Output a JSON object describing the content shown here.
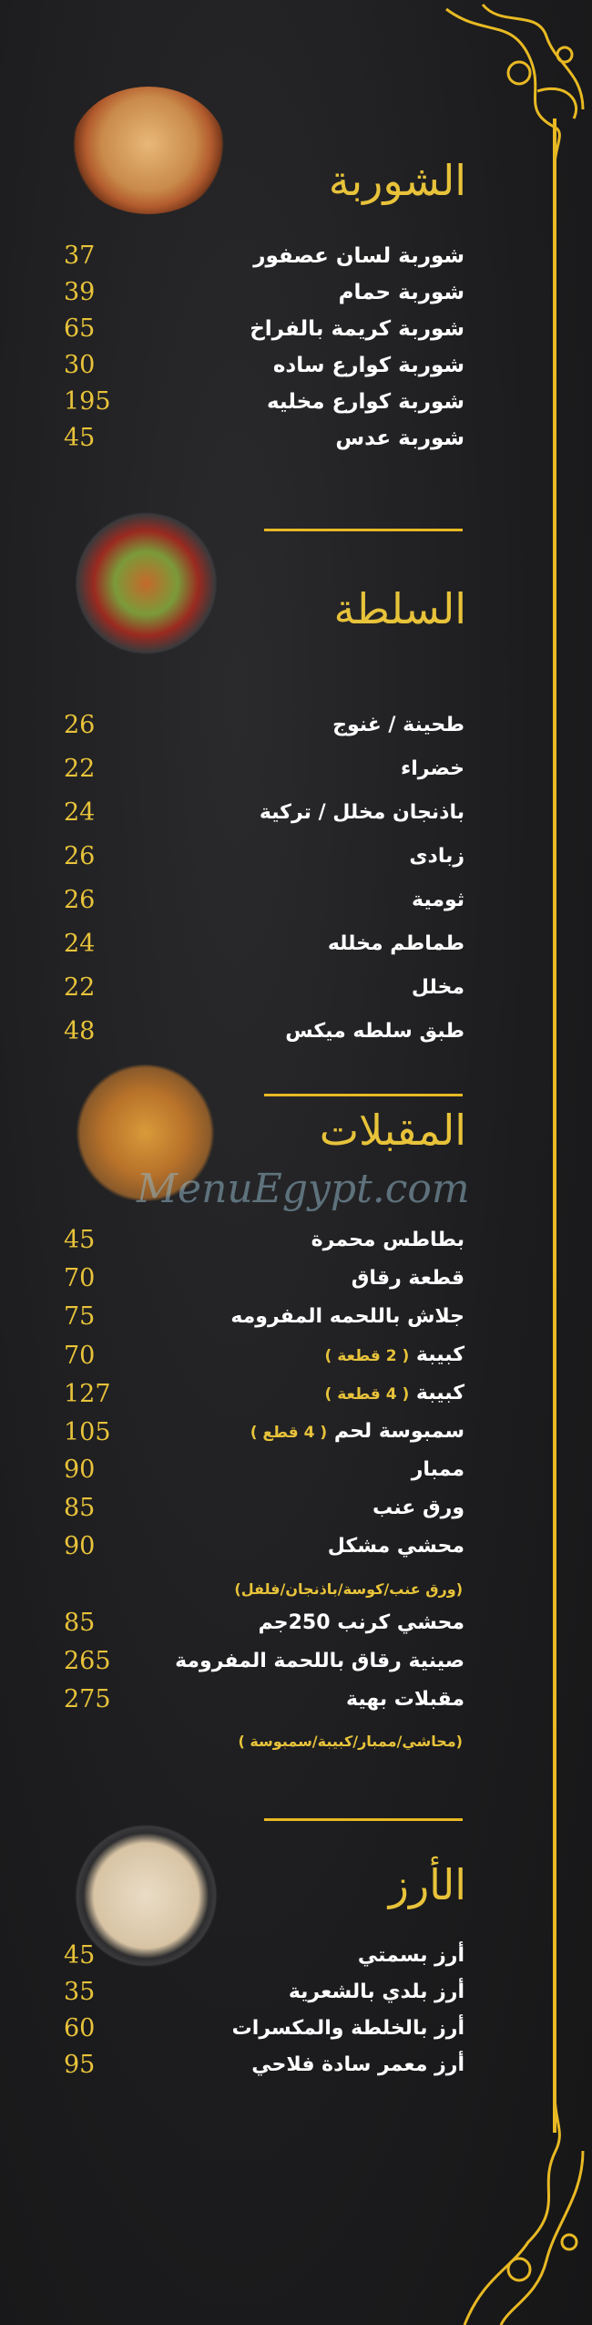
{
  "colors": {
    "background": "#1d1d1f",
    "accent": "#e8b923",
    "text": "#ffffff"
  },
  "watermark": "MenuEgypt.com",
  "sections": [
    {
      "title": "الشوربة",
      "image": "soup-bowl",
      "items": [
        {
          "name": "شوربة لسان عصفور",
          "price": "37"
        },
        {
          "name": "شوربة حمام",
          "price": "39"
        },
        {
          "name": "شوربة كريمة بالفراخ",
          "price": "65"
        },
        {
          "name": "شوربة كوارع ساده",
          "price": "30"
        },
        {
          "name": "شوربة كوارع مخليه",
          "price": "195"
        },
        {
          "name": "شوربة عدس",
          "price": "45"
        }
      ]
    },
    {
      "title": "السلطة",
      "image": "salad-plate",
      "items": [
        {
          "name": "طحينة / غنوج",
          "price": "26"
        },
        {
          "name": "خضراء",
          "price": "22"
        },
        {
          "name": "باذنجان مخلل / تركية",
          "price": "24"
        },
        {
          "name": "زبادى",
          "price": "26"
        },
        {
          "name": "ثومية",
          "price": "26"
        },
        {
          "name": "طماطم مخلله",
          "price": "24"
        },
        {
          "name": "مخلل",
          "price": "22"
        },
        {
          "name": "طبق سلطه ميكس",
          "price": "48"
        }
      ]
    },
    {
      "title": "المقبلات",
      "image": "appetizers-platter",
      "items": [
        {
          "name": "بطاطس محمرة",
          "price": "45"
        },
        {
          "name": "قطعة رقاق",
          "price": "70"
        },
        {
          "name": "جلاش باللحمه المفرومه",
          "price": "75"
        },
        {
          "name": "كبيبة",
          "sub": "( 2 قطعة )",
          "price": "70"
        },
        {
          "name": "كبيبة",
          "sub": "( 4 قطعة )",
          "price": "127"
        },
        {
          "name": "سمبوسة لحم",
          "sub": "( 4 قطع )",
          "price": "105"
        },
        {
          "name": "ممبار",
          "price": "90"
        },
        {
          "name": "ورق عنب",
          "price": "85"
        },
        {
          "name": "محشي مشكل",
          "price": "90"
        },
        {
          "name": "محشي كرنب 250جم",
          "price": "85"
        },
        {
          "name": "صينية رقاق باللحمة المفرومة",
          "price": "265"
        },
        {
          "name": "مقبلات بهية",
          "price": "275"
        }
      ],
      "notes": [
        "(ورق عنب/كوسة/باذنجان/فلفل)",
        "(محاشي/ممبار/كبيبة/سمبوسة )"
      ]
    },
    {
      "title": "الأرز",
      "image": "rice-bowl",
      "items": [
        {
          "name": "أرز بسمتي",
          "price": "45"
        },
        {
          "name": "أرز  بلدي بالشعرية",
          "price": "35"
        },
        {
          "name": "أرز بالخلطة والمكسرات",
          "price": "60"
        },
        {
          "name": "أرز معمر سادة فلاحي",
          "price": "95"
        }
      ]
    }
  ]
}
